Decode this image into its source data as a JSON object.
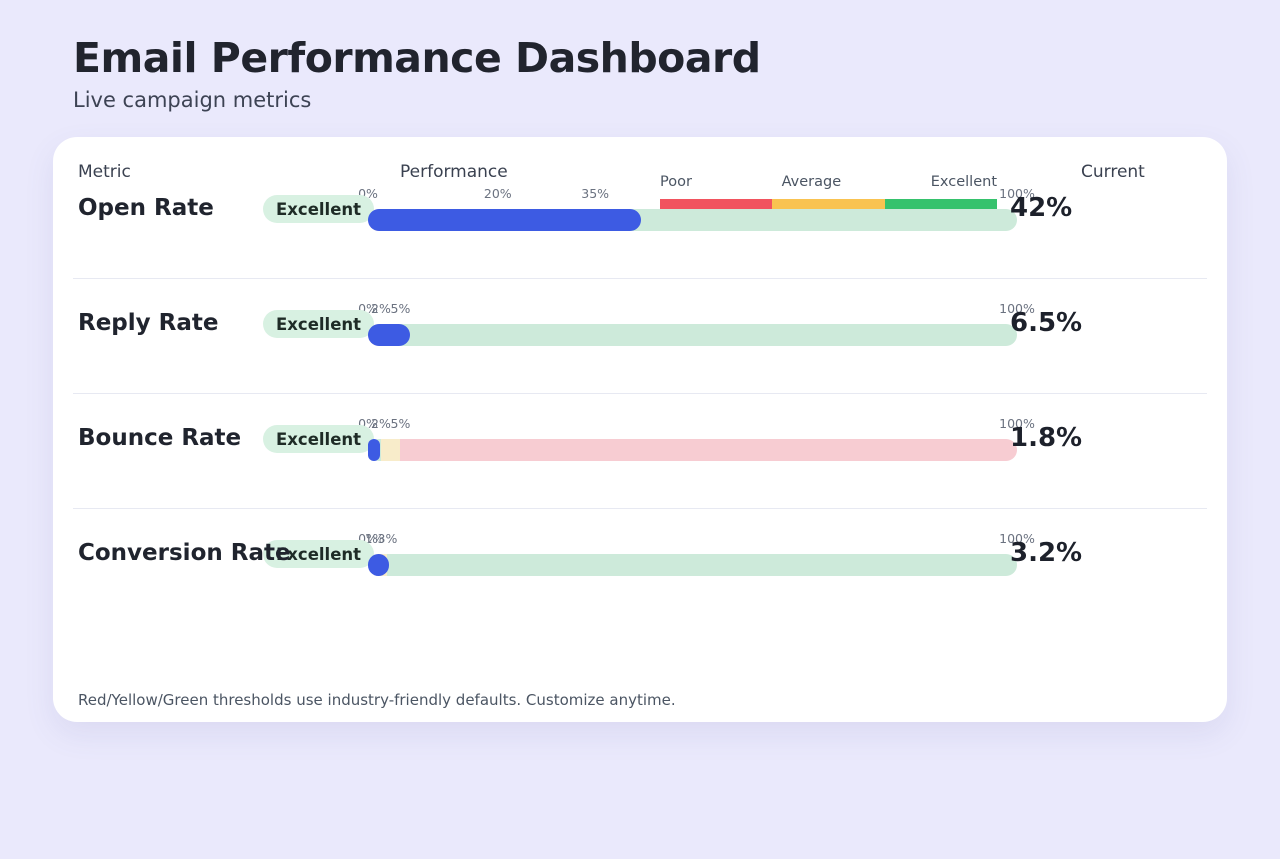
{
  "page": {
    "title": "Email Performance Dashboard",
    "subtitle": "Live campaign metrics"
  },
  "colors": {
    "page_bg": "#eae9fc",
    "card_bg": "#ffffff",
    "accent_blue": "#3d5be3",
    "legend_red": "#f1535f",
    "legend_yellow": "#f9c351",
    "legend_green": "#36c26d",
    "zone_red": "#f7ccd2",
    "zone_yellow": "#f8ecca",
    "zone_green": "#cdeada",
    "badge_bg": "#d8f1e2",
    "badge_text": "#1e2b26"
  },
  "table": {
    "headers": {
      "metric": "Metric",
      "performance": "Performance",
      "current": "Current"
    },
    "legend": [
      {
        "label": "Poor",
        "color_key": "legend_red"
      },
      {
        "label": "Average",
        "color_key": "legend_yellow"
      },
      {
        "label": "Excellent",
        "color_key": "legend_green"
      }
    ],
    "rows": [
      {
        "metric": "Open Rate",
        "status": "Excellent",
        "current": "42%",
        "value": 42,
        "ticks": [
          {
            "label": "0%",
            "pos": 0
          },
          {
            "label": "20%",
            "pos": 20
          },
          {
            "label": "35%",
            "pos": 35
          },
          {
            "label": "100%",
            "pos": 100
          }
        ],
        "zones": [
          {
            "from": 0,
            "to": 20,
            "color_key": "zone_red"
          },
          {
            "from": 20,
            "to": 35,
            "color_key": "zone_yellow"
          },
          {
            "from": 35,
            "to": 100,
            "color_key": "zone_green"
          }
        ]
      },
      {
        "metric": "Reply Rate",
        "status": "Excellent",
        "current": "6.5%",
        "value": 6.5,
        "ticks": [
          {
            "label": "0%",
            "pos": 0
          },
          {
            "label": "2%",
            "pos": 2
          },
          {
            "label": "5%",
            "pos": 5
          },
          {
            "label": "100%",
            "pos": 100
          }
        ],
        "zones": [
          {
            "from": 0,
            "to": 2,
            "color_key": "zone_red"
          },
          {
            "from": 2,
            "to": 5,
            "color_key": "zone_yellow"
          },
          {
            "from": 5,
            "to": 100,
            "color_key": "zone_green"
          }
        ]
      },
      {
        "metric": "Bounce Rate",
        "status": "Excellent",
        "current": "1.8%",
        "value": 1.8,
        "ticks": [
          {
            "label": "0%",
            "pos": 0
          },
          {
            "label": "2%",
            "pos": 2
          },
          {
            "label": "5%",
            "pos": 5
          },
          {
            "label": "100%",
            "pos": 100
          }
        ],
        "zones": [
          {
            "from": 0,
            "to": 2,
            "color_key": "zone_green"
          },
          {
            "from": 2,
            "to": 5,
            "color_key": "zone_yellow"
          },
          {
            "from": 5,
            "to": 100,
            "color_key": "zone_red"
          }
        ]
      },
      {
        "metric": "Conversion Rate",
        "status": "Excellent",
        "current": "3.2%",
        "value": 3.2,
        "ticks": [
          {
            "label": "0%",
            "pos": 0
          },
          {
            "label": "1%",
            "pos": 1
          },
          {
            "label": "3%",
            "pos": 3
          },
          {
            "label": "100%",
            "pos": 100
          }
        ],
        "zones": [
          {
            "from": 0,
            "to": 1,
            "color_key": "zone_red"
          },
          {
            "from": 1,
            "to": 3,
            "color_key": "zone_yellow"
          },
          {
            "from": 3,
            "to": 100,
            "color_key": "zone_green"
          }
        ]
      }
    ],
    "footnote": "Red/Yellow/Green thresholds use industry-friendly defaults. Customize anytime."
  }
}
